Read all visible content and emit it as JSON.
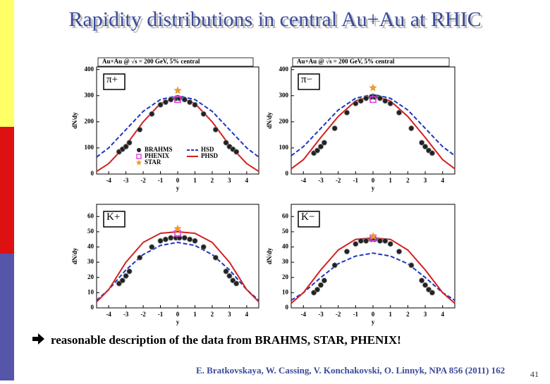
{
  "title": "Rapidity distributions in central Au+Au at RHIC",
  "bullet": "reasonable description of the data from BRAHMS, STAR, PHENIX!",
  "citation": "E. Bratkovskaya, W. Cassing, V. Konchakovski, O. Linnyk, NPA 856 (2011) 162",
  "page_number": "41",
  "chart_data": [
    {
      "type": "line",
      "title": "Au+Au @ √s = 200 GeV, 5% central",
      "label": "π+",
      "xlabel": "y",
      "ylabel": "dN/dy",
      "xlim": [
        -4.7,
        4.7
      ],
      "xticks": [
        -4,
        -3,
        -2,
        -1,
        0,
        1,
        2,
        3,
        4
      ],
      "ylim": [
        0,
        410
      ],
      "yticks": [
        0,
        100,
        200,
        300,
        400
      ],
      "legend": true,
      "series": [
        {
          "name": "BRAHMS",
          "marker": "circle",
          "color": "#222222",
          "x": [
            -3.4,
            -3.2,
            -3.0,
            -2.8,
            -2.2,
            -1.5,
            -1.0,
            -0.7,
            -0.4,
            -0.1,
            0.1,
            0.4,
            0.7,
            1.0,
            1.5,
            2.2,
            2.8,
            3.0,
            3.2,
            3.4
          ],
          "values": [
            85,
            95,
            105,
            120,
            170,
            230,
            265,
            275,
            285,
            290,
            290,
            285,
            275,
            265,
            230,
            170,
            120,
            105,
            95,
            85
          ]
        },
        {
          "name": "PHENIX",
          "marker": "square",
          "color": "#e040e0",
          "x": [
            0
          ],
          "values": [
            285
          ]
        },
        {
          "name": "STAR",
          "marker": "star",
          "color": "#f09a30",
          "x": [
            0
          ],
          "values": [
            320
          ]
        },
        {
          "name": "HSD",
          "dash": true,
          "color": "#1f35c0",
          "x": [
            -4.7,
            -4,
            -3,
            -2,
            -1,
            0,
            1,
            2,
            3,
            4,
            4.7
          ],
          "values": [
            65,
            100,
            170,
            240,
            285,
            300,
            285,
            240,
            170,
            100,
            65
          ]
        },
        {
          "name": "PHSD",
          "dash": false,
          "color": "#d42020",
          "x": [
            -4.7,
            -4,
            -3,
            -2,
            -1,
            0,
            1,
            2,
            3,
            4,
            4.7
          ],
          "values": [
            10,
            40,
            110,
            200,
            270,
            295,
            270,
            200,
            110,
            40,
            10
          ]
        }
      ]
    },
    {
      "type": "line",
      "title": "Au+Au @ √s = 200 GeV, 5% central",
      "label": "π−",
      "xlabel": "y",
      "ylabel": "dN/dy",
      "xlim": [
        -4.7,
        4.7
      ],
      "xticks": [
        -4,
        -3,
        -2,
        -1,
        0,
        1,
        2,
        3,
        4
      ],
      "ylim": [
        0,
        410
      ],
      "yticks": [
        0,
        100,
        200,
        300,
        400
      ],
      "legend": false,
      "series": [
        {
          "marker": "circle",
          "color": "#222222",
          "x": [
            -3.4,
            -3.2,
            -3.0,
            -2.8,
            -2.2,
            -1.5,
            -1.0,
            -0.7,
            -0.4,
            -0.1,
            0.1,
            0.4,
            0.7,
            1.0,
            1.5,
            2.2,
            2.8,
            3.0,
            3.2,
            3.4
          ],
          "values": [
            80,
            90,
            105,
            120,
            175,
            235,
            270,
            280,
            290,
            295,
            295,
            290,
            280,
            270,
            235,
            175,
            120,
            105,
            90,
            80
          ]
        },
        {
          "marker": "square",
          "color": "#e040e0",
          "x": [
            0
          ],
          "values": [
            285
          ]
        },
        {
          "marker": "star",
          "color": "#f09a30",
          "x": [
            0
          ],
          "values": [
            330
          ]
        },
        {
          "dash": true,
          "color": "#1f35c0",
          "x": [
            -4.7,
            -4,
            -3,
            -2,
            -1,
            0,
            1,
            2,
            3,
            4,
            4.7
          ],
          "values": [
            70,
            105,
            175,
            245,
            290,
            305,
            290,
            245,
            175,
            105,
            70
          ]
        },
        {
          "dash": false,
          "color": "#d42020",
          "x": [
            -4.7,
            -4,
            -3,
            -2,
            -1,
            0,
            1,
            2,
            3,
            4,
            4.7
          ],
          "values": [
            20,
            55,
            140,
            220,
            280,
            300,
            280,
            220,
            140,
            55,
            20
          ]
        }
      ]
    },
    {
      "type": "line",
      "label": "K+",
      "xlabel": "y",
      "ylabel": "dN/dy",
      "xlim": [
        -4.7,
        4.7
      ],
      "xticks": [
        -4,
        -3,
        -2,
        -1,
        0,
        1,
        2,
        3,
        4
      ],
      "ylim": [
        0,
        68
      ],
      "yticks": [
        0,
        10,
        20,
        30,
        40,
        50,
        60
      ],
      "legend": false,
      "series": [
        {
          "marker": "circle",
          "color": "#222222",
          "x": [
            -3.4,
            -3.2,
            -3.0,
            -2.8,
            -2.2,
            -1.5,
            -1.0,
            -0.7,
            -0.4,
            -0.1,
            0.1,
            0.4,
            0.7,
            1.0,
            1.5,
            2.2,
            2.8,
            3.0,
            3.2,
            3.4
          ],
          "values": [
            16,
            18,
            21,
            24,
            33,
            40,
            44,
            45,
            46,
            46,
            46,
            46,
            45,
            44,
            40,
            33,
            24,
            21,
            18,
            16
          ]
        },
        {
          "marker": "square",
          "color": "#e040e0",
          "x": [
            0
          ],
          "values": [
            49
          ]
        },
        {
          "marker": "star",
          "color": "#f09a30",
          "x": [
            0
          ],
          "values": [
            52
          ]
        },
        {
          "dash": true,
          "color": "#1f35c0",
          "x": [
            -4.7,
            -4,
            -3,
            -2,
            -1,
            0,
            1,
            2,
            3,
            4,
            4.7
          ],
          "values": [
            5,
            12,
            25,
            35,
            41,
            43,
            41,
            35,
            25,
            12,
            5
          ]
        },
        {
          "dash": false,
          "color": "#d42020",
          "x": [
            -4.7,
            -4,
            -3,
            -2,
            -1,
            0,
            1,
            2,
            3,
            4,
            4.7
          ],
          "values": [
            4,
            12,
            30,
            43,
            49,
            50,
            49,
            43,
            30,
            12,
            4
          ]
        }
      ]
    },
    {
      "type": "line",
      "label": "K−",
      "xlabel": "y",
      "ylabel": "dN/dy",
      "xlim": [
        -4.7,
        4.7
      ],
      "xticks": [
        -4,
        -3,
        -2,
        -1,
        0,
        1,
        2,
        3,
        4
      ],
      "ylim": [
        0,
        68
      ],
      "yticks": [
        0,
        10,
        20,
        30,
        40,
        50,
        60
      ],
      "legend": false,
      "series": [
        {
          "marker": "circle",
          "color": "#222222",
          "x": [
            -3.4,
            -3.2,
            -3.0,
            -2.8,
            -2.2,
            -1.5,
            -1.0,
            -0.7,
            -0.4,
            -0.1,
            0.1,
            0.4,
            0.7,
            1.0,
            1.5,
            2.2,
            2.8,
            3.0,
            3.2,
            3.4
          ],
          "values": [
            10,
            12,
            15,
            18,
            28,
            37,
            42,
            44,
            44,
            45,
            45,
            44,
            44,
            42,
            37,
            28,
            18,
            15,
            12,
            10
          ]
        },
        {
          "marker": "square",
          "color": "#e040e0",
          "x": [
            0
          ],
          "values": [
            46
          ]
        },
        {
          "marker": "star",
          "color": "#f09a30",
          "x": [
            0
          ],
          "values": [
            47
          ]
        },
        {
          "dash": true,
          "color": "#1f35c0",
          "x": [
            -4.7,
            -4,
            -3,
            -2,
            -1,
            0,
            1,
            2,
            3,
            4,
            4.7
          ],
          "values": [
            5,
            10,
            20,
            29,
            34,
            36,
            34,
            29,
            20,
            10,
            5
          ]
        },
        {
          "dash": false,
          "color": "#d42020",
          "x": [
            -4.7,
            -4,
            -3,
            -2,
            -1,
            0,
            1,
            2,
            3,
            4,
            4.7
          ],
          "values": [
            3,
            10,
            25,
            38,
            45,
            46,
            45,
            38,
            25,
            10,
            3
          ]
        }
      ]
    }
  ]
}
